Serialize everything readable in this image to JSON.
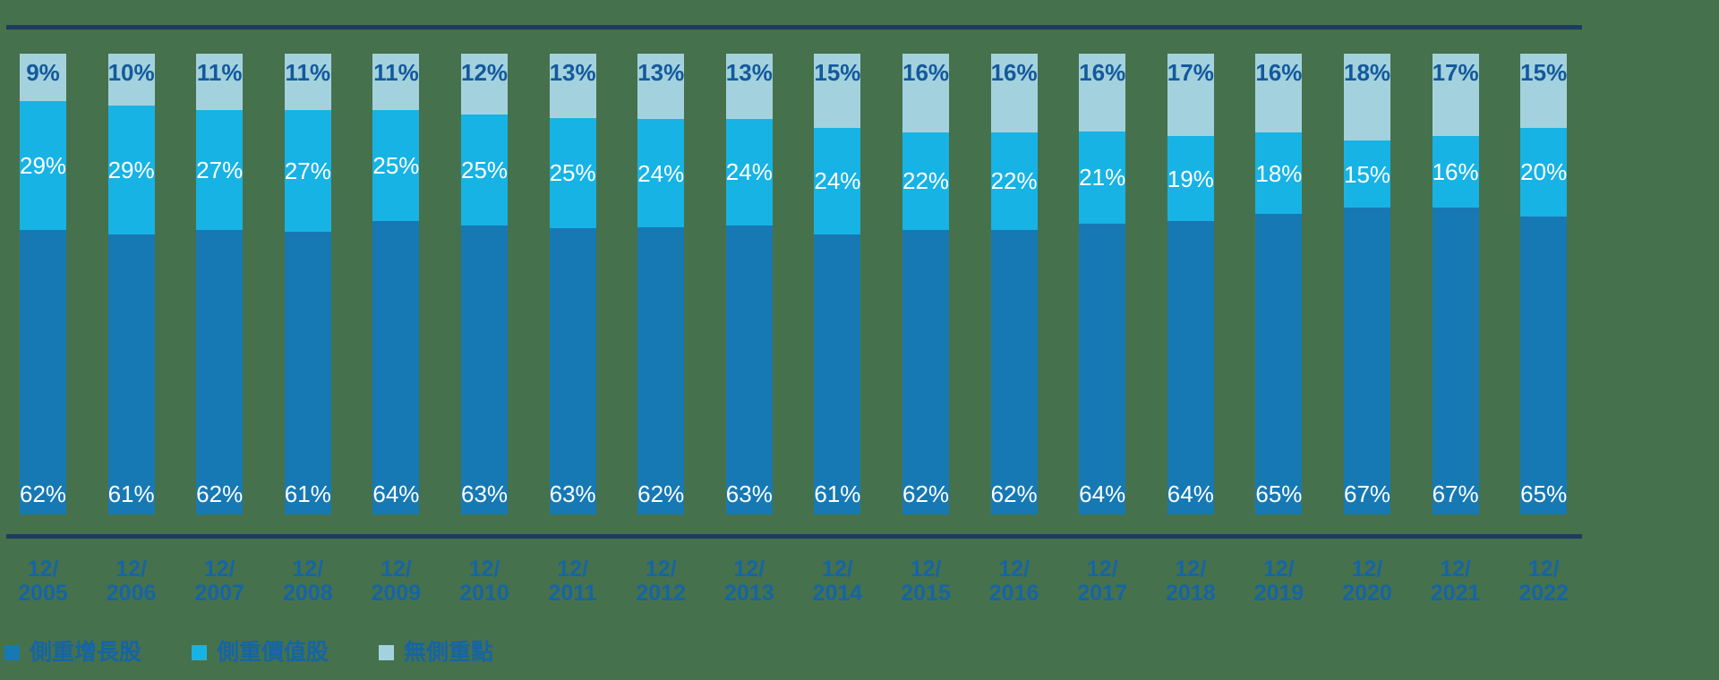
{
  "page": {
    "background_color": "#46714d"
  },
  "chart_data": {
    "type": "bar",
    "variant": "stacked-100-percent-vertical",
    "title": "",
    "xlabel": "",
    "ylabel": "",
    "grid": false,
    "legend_position": "bottom-left",
    "axis_line_color": "#1f3b60",
    "tick_label_color": "#1565a5",
    "value_suffix": "%",
    "x_tick_line1": "12/",
    "categories": [
      "2005",
      "2006",
      "2007",
      "2008",
      "2009",
      "2010",
      "2011",
      "2012",
      "2013",
      "2014",
      "2015",
      "2016",
      "2017",
      "2018",
      "2019",
      "2020",
      "2021",
      "2022"
    ],
    "series": [
      {
        "name": "側重增長股",
        "color": "#1779b4",
        "label_color": "#ffffff",
        "values": [
          62,
          61,
          62,
          61,
          64,
          63,
          63,
          62,
          63,
          61,
          62,
          62,
          64,
          64,
          65,
          67,
          67,
          65
        ]
      },
      {
        "name": "側重價值股",
        "color": "#17b3e5",
        "label_color": "#ffffff",
        "values": [
          29,
          29,
          27,
          27,
          25,
          25,
          25,
          24,
          24,
          24,
          22,
          22,
          21,
          19,
          18,
          15,
          16,
          20
        ]
      },
      {
        "name": "無側重點",
        "color": "#a3d2de",
        "label_color": "#14599c",
        "values": [
          9,
          10,
          11,
          11,
          11,
          12,
          13,
          13,
          13,
          15,
          16,
          16,
          16,
          17,
          16,
          18,
          17,
          15
        ]
      }
    ]
  }
}
